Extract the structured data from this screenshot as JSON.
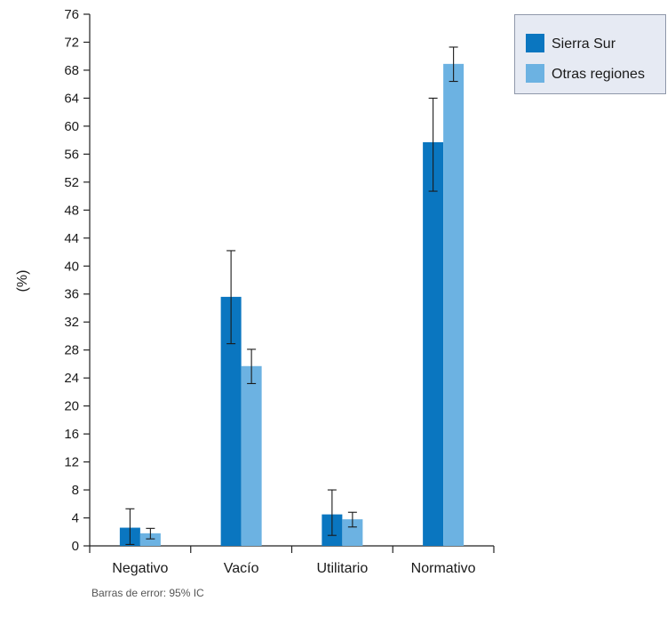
{
  "chart_data": {
    "type": "bar",
    "categories": [
      "Negativo",
      "Vacío",
      "Utilitario",
      "Normativo"
    ],
    "series": [
      {
        "name": "Sierra Sur",
        "color": "#0a76c0",
        "values": [
          2.6,
          35.6,
          4.5,
          57.7
        ],
        "error_low": [
          0.2,
          28.9,
          1.5,
          50.7
        ],
        "error_high": [
          5.3,
          42.2,
          8.0,
          64.0
        ]
      },
      {
        "name": "Otras regiones",
        "color": "#6cb2e2",
        "values": [
          1.8,
          25.7,
          3.8,
          68.9
        ],
        "error_low": [
          1.0,
          23.2,
          2.7,
          66.4
        ],
        "error_high": [
          2.5,
          28.1,
          4.8,
          71.3
        ]
      }
    ],
    "ylabel": "(%)",
    "xlabel": "",
    "ylim": [
      0,
      76
    ],
    "yticks": [
      0,
      4,
      8,
      12,
      16,
      20,
      24,
      28,
      32,
      36,
      40,
      44,
      48,
      52,
      56,
      60,
      64,
      68,
      72,
      76
    ],
    "grid": false,
    "legend_position": "top-right"
  },
  "note": "Barras de error: 95% IC"
}
